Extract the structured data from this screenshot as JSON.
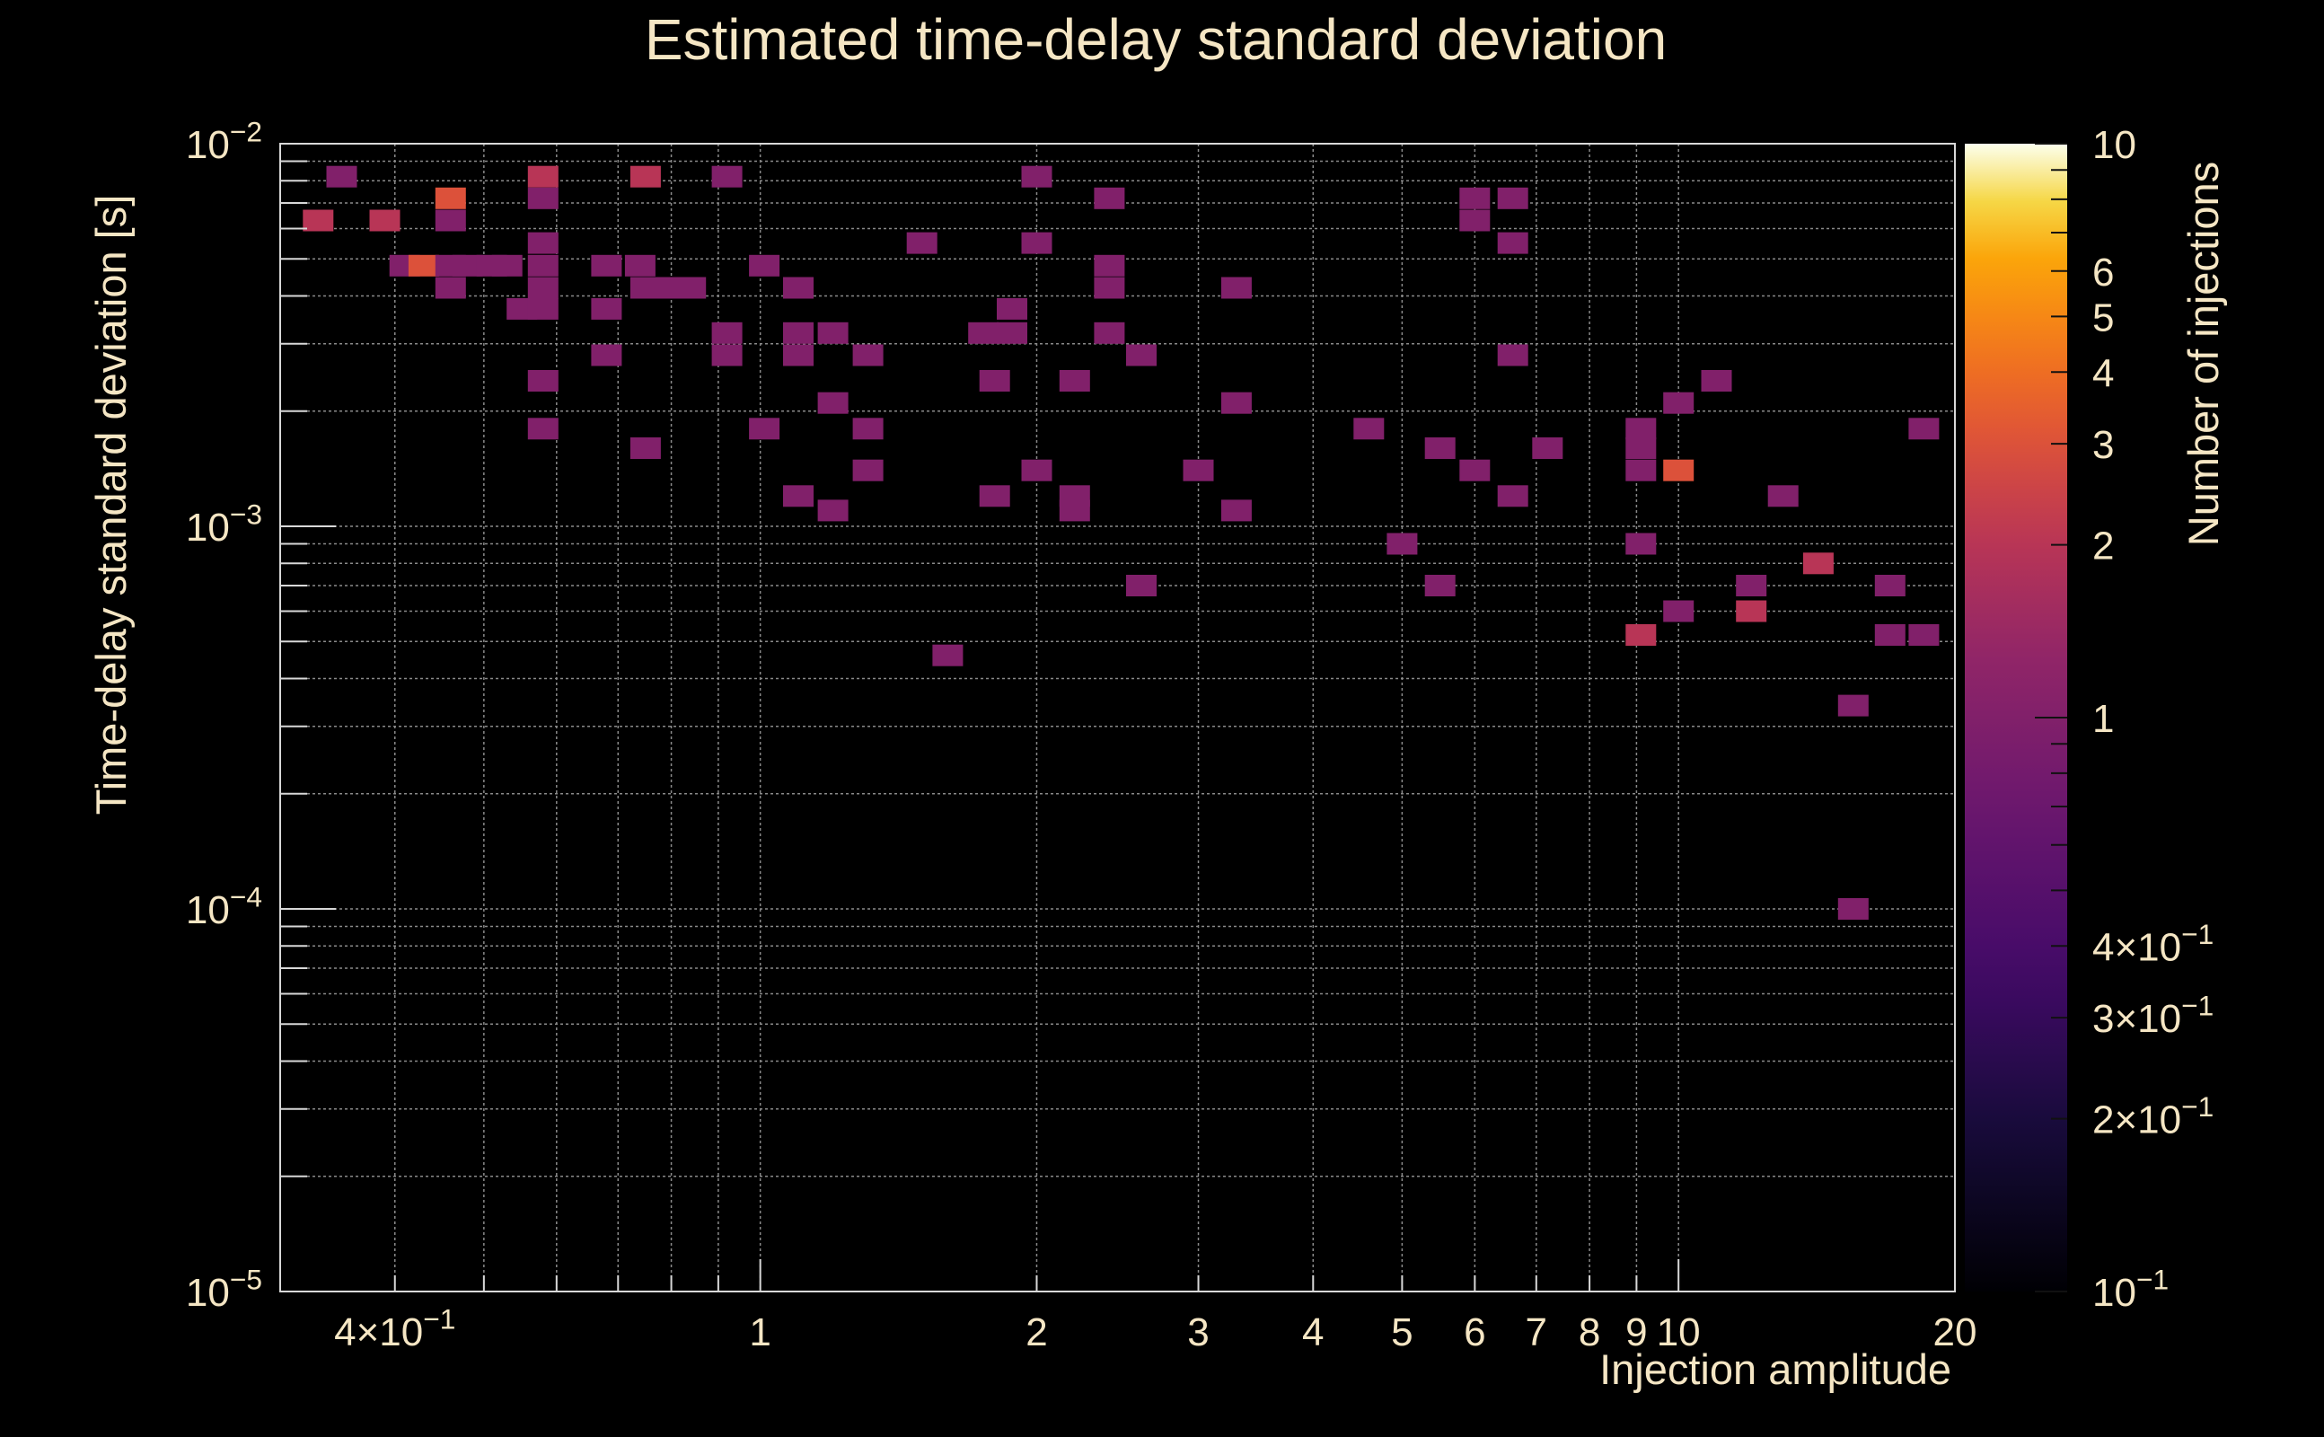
{
  "colors": {
    "background": "#000000",
    "text": "#f5e6c4",
    "grid": "#8a8a8a",
    "frame": "#d8d8d8"
  },
  "chart_data": {
    "type": "heatmap",
    "title": "Estimated time-delay standard deviation",
    "xlabel": "Injection amplitude",
    "ylabel": "Time-delay standard deviation [s]",
    "zlabel": "Number of injections",
    "xscale": "log",
    "yscale": "log",
    "zscale": "log",
    "xlim": [
      0.3,
      20
    ],
    "ylim": [
      1e-05,
      0.01
    ],
    "zlim": [
      0.1,
      10
    ],
    "x_ticks": [
      {
        "value": 0.4,
        "label": "4×10",
        "exp": "−1"
      },
      {
        "value": 1,
        "label": "1"
      },
      {
        "value": 2,
        "label": "2"
      },
      {
        "value": 3,
        "label": "3"
      },
      {
        "value": 4,
        "label": "4"
      },
      {
        "value": 5,
        "label": "5"
      },
      {
        "value": 6,
        "label": "6"
      },
      {
        "value": 7,
        "label": "7"
      },
      {
        "value": 8,
        "label": "8"
      },
      {
        "value": 9,
        "label": "9"
      },
      {
        "value": 10,
        "label": "10"
      },
      {
        "value": 20,
        "label": "20"
      }
    ],
    "y_ticks": [
      {
        "value": 1e-05,
        "label": "10",
        "exp": "−5"
      },
      {
        "value": 0.0001,
        "label": "10",
        "exp": "−4"
      },
      {
        "value": 0.001,
        "label": "10",
        "exp": "−3"
      },
      {
        "value": 0.01,
        "label": "10",
        "exp": "−2"
      }
    ],
    "z_ticks": [
      {
        "value": 0.1,
        "label": "10",
        "exp": "−1"
      },
      {
        "value": 0.2,
        "label": "2×10",
        "exp": "−1"
      },
      {
        "value": 0.3,
        "label": "3×10",
        "exp": "−1"
      },
      {
        "value": 0.4,
        "label": "4×10",
        "exp": "−1"
      },
      {
        "value": 1,
        "label": "1"
      },
      {
        "value": 2,
        "label": "2"
      },
      {
        "value": 3,
        "label": "3"
      },
      {
        "value": 4,
        "label": "4"
      },
      {
        "value": 5,
        "label": "5"
      },
      {
        "value": 6,
        "label": "6"
      },
      {
        "value": 10,
        "label": "10"
      }
    ],
    "colormap": "inferno",
    "cells": [
      [
        0.33,
        0.0063,
        2
      ],
      [
        0.35,
        0.0082,
        1
      ],
      [
        0.39,
        0.0063,
        2
      ],
      [
        0.41,
        0.0048,
        1
      ],
      [
        0.43,
        0.0048,
        3
      ],
      [
        0.46,
        0.0072,
        3
      ],
      [
        0.46,
        0.0063,
        1
      ],
      [
        0.46,
        0.0048,
        1
      ],
      [
        0.46,
        0.0042,
        1
      ],
      [
        0.48,
        0.0048,
        1
      ],
      [
        0.51,
        0.0048,
        1
      ],
      [
        0.53,
        0.0048,
        1
      ],
      [
        0.55,
        0.0037,
        1
      ],
      [
        0.58,
        0.0082,
        2
      ],
      [
        0.58,
        0.0072,
        1
      ],
      [
        0.58,
        0.0055,
        1
      ],
      [
        0.58,
        0.0048,
        1
      ],
      [
        0.58,
        0.0042,
        1
      ],
      [
        0.58,
        0.0037,
        1
      ],
      [
        0.58,
        0.0024,
        1
      ],
      [
        0.58,
        0.0018,
        1
      ],
      [
        0.68,
        0.0048,
        1
      ],
      [
        0.68,
        0.0037,
        1
      ],
      [
        0.68,
        0.0028,
        1
      ],
      [
        0.75,
        0.0082,
        2
      ],
      [
        0.74,
        0.0048,
        1
      ],
      [
        0.75,
        0.0042,
        1
      ],
      [
        0.75,
        0.0016,
        1
      ],
      [
        0.79,
        0.0042,
        1
      ],
      [
        0.84,
        0.0042,
        1
      ],
      [
        0.92,
        0.0082,
        1
      ],
      [
        0.92,
        0.0032,
        1
      ],
      [
        0.92,
        0.0028,
        1
      ],
      [
        1.01,
        0.0048,
        1
      ],
      [
        1.01,
        0.0018,
        1
      ],
      [
        1.1,
        0.0042,
        1
      ],
      [
        1.1,
        0.0032,
        1
      ],
      [
        1.1,
        0.0028,
        1
      ],
      [
        1.1,
        0.0012,
        1
      ],
      [
        1.2,
        0.0032,
        1
      ],
      [
        1.2,
        0.0021,
        1
      ],
      [
        1.2,
        0.0011,
        1
      ],
      [
        1.31,
        0.0028,
        1
      ],
      [
        1.31,
        0.0018,
        1
      ],
      [
        1.31,
        0.0014,
        1
      ],
      [
        1.5,
        0.0055,
        1
      ],
      [
        1.6,
        0.00046,
        1
      ],
      [
        1.75,
        0.0032,
        1
      ],
      [
        1.88,
        0.0037,
        1
      ],
      [
        1.88,
        0.0032,
        1
      ],
      [
        1.8,
        0.0024,
        1
      ],
      [
        1.8,
        0.0012,
        1
      ],
      [
        2.0,
        0.0082,
        1
      ],
      [
        2.0,
        0.0055,
        1
      ],
      [
        2.0,
        0.0014,
        1
      ],
      [
        2.2,
        0.0024,
        1
      ],
      [
        2.2,
        0.0012,
        1
      ],
      [
        2.2,
        0.0011,
        1
      ],
      [
        2.4,
        0.0072,
        1
      ],
      [
        2.4,
        0.0048,
        1
      ],
      [
        2.4,
        0.0042,
        1
      ],
      [
        2.4,
        0.0032,
        1
      ],
      [
        2.6,
        0.0028,
        1
      ],
      [
        2.6,
        0.0007,
        1
      ],
      [
        3.0,
        0.0014,
        1
      ],
      [
        3.3,
        0.0042,
        1
      ],
      [
        3.3,
        0.0021,
        1
      ],
      [
        3.3,
        0.0011,
        1
      ],
      [
        4.6,
        0.0018,
        1
      ],
      [
        5.0,
        0.0009,
        1
      ],
      [
        5.5,
        0.0016,
        1
      ],
      [
        5.5,
        0.0007,
        1
      ],
      [
        6.0,
        0.0072,
        1
      ],
      [
        6.0,
        0.0063,
        1
      ],
      [
        6.6,
        0.0072,
        1
      ],
      [
        6.6,
        0.0055,
        1
      ],
      [
        6.6,
        0.0028,
        1
      ],
      [
        6.0,
        0.0014,
        1
      ],
      [
        6.6,
        0.0012,
        1
      ],
      [
        7.2,
        0.0016,
        1
      ],
      [
        9.1,
        0.0018,
        1
      ],
      [
        9.1,
        0.0016,
        1
      ],
      [
        9.1,
        0.0014,
        1
      ],
      [
        9.1,
        0.0009,
        1
      ],
      [
        9.1,
        0.00052,
        2
      ],
      [
        10.0,
        0.0021,
        1
      ],
      [
        10.0,
        0.0014,
        3
      ],
      [
        10.0,
        0.0006,
        1
      ],
      [
        11.0,
        0.0024,
        1
      ],
      [
        12.0,
        0.0007,
        1
      ],
      [
        12.0,
        0.0006,
        2
      ],
      [
        13.0,
        0.0012,
        1
      ],
      [
        14.2,
        0.0008,
        2
      ],
      [
        15.5,
        0.00034,
        1
      ],
      [
        15.5,
        0.0001,
        1
      ],
      [
        17.0,
        0.0007,
        1
      ],
      [
        17.0,
        0.00052,
        1
      ],
      [
        18.5,
        0.00052,
        1
      ],
      [
        18.5,
        0.0018,
        1
      ]
    ]
  }
}
